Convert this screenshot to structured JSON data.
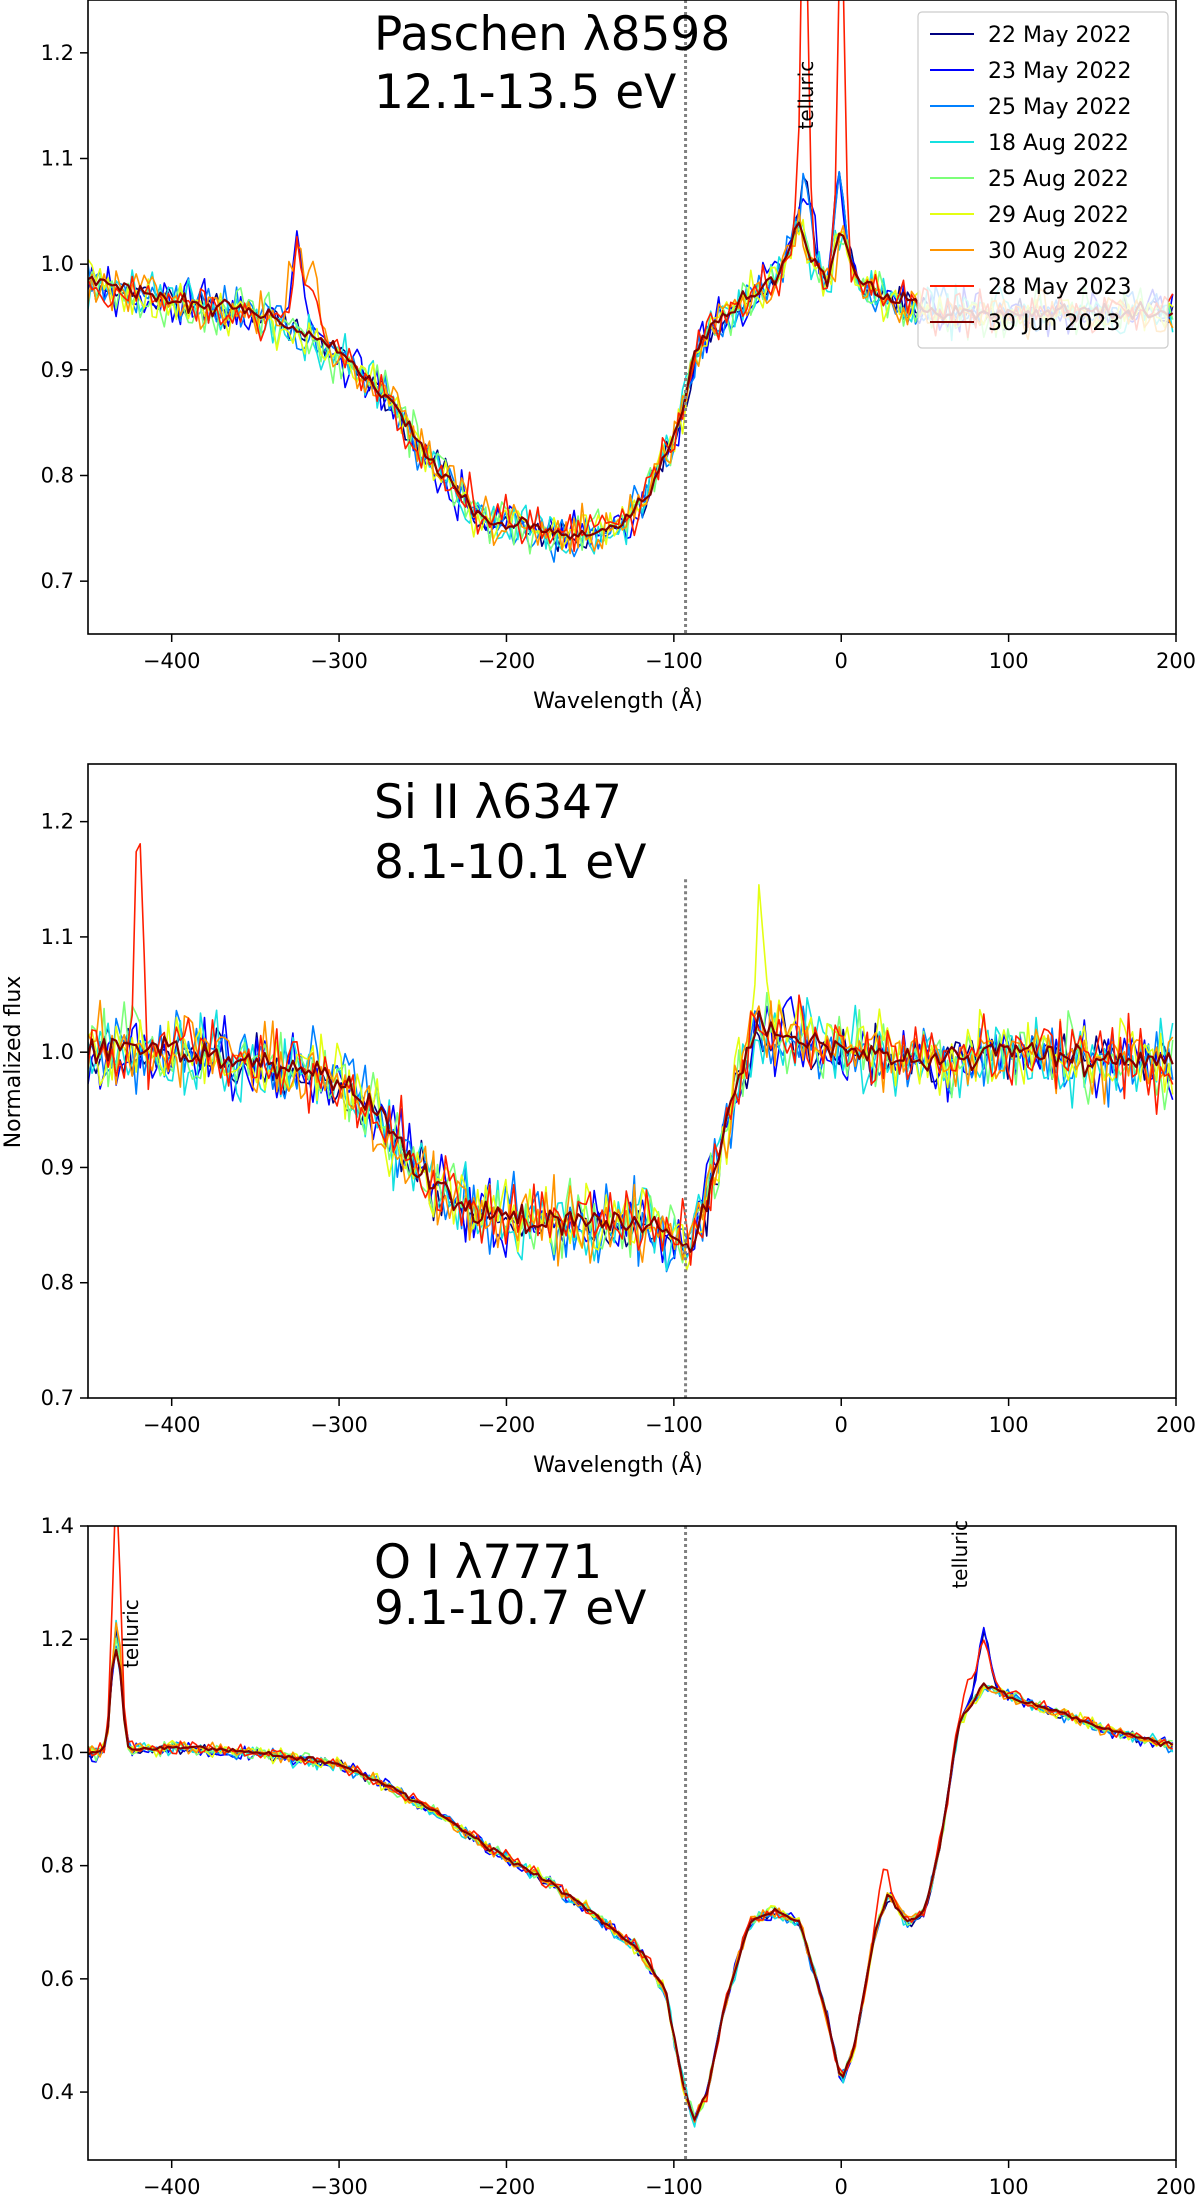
{
  "figure": {
    "ylabel": "Normalized flux",
    "legend": {
      "placement": "top-right of first panel",
      "entries": [
        {
          "label": "22 May 2022",
          "color": "#000080"
        },
        {
          "label": "23 May 2022",
          "color": "#0000ff"
        },
        {
          "label": "25 May 2022",
          "color": "#0080ff"
        },
        {
          "label": "18 Aug 2022",
          "color": "#15e0e0"
        },
        {
          "label": "25 Aug 2022",
          "color": "#7cff79"
        },
        {
          "label": "29 Aug 2022",
          "color": "#e4ff13"
        },
        {
          "label": "30 Aug 2022",
          "color": "#ff9400"
        },
        {
          "label": "28 May 2023",
          "color": "#ff1e00"
        },
        {
          "label": "30 Jun 2023",
          "color": "#800000"
        }
      ]
    },
    "vline_color": "#808080"
  },
  "chart_data": [
    {
      "type": "line",
      "title": "Paschen λ8598",
      "subtitle": "12.1-13.5 eV",
      "xlabel": "Wavelength (Å)",
      "xlim": [
        -450,
        200
      ],
      "ylim": [
        0.65,
        1.25
      ],
      "xticks": [
        -400,
        -300,
        -200,
        -100,
        0,
        100,
        200
      ],
      "xtick_labels": [
        "−400",
        "−300",
        "−200",
        "−100",
        "0",
        "100",
        "200"
      ],
      "yticks": [
        0.7,
        0.8,
        0.9,
        1.0,
        1.1,
        1.2
      ],
      "ytick_labels": [
        "0.7",
        "0.8",
        "0.9",
        "1.0",
        "1.1",
        "1.2"
      ],
      "vline_x": -93,
      "annotations": [
        {
          "text": "telluric",
          "x": -17,
          "y": 1.16,
          "rotation": -90
        }
      ],
      "profile": [
        [
          -450,
          0.98
        ],
        [
          -400,
          0.96
        ],
        [
          -350,
          0.95
        ],
        [
          -320,
          0.93
        ],
        [
          -300,
          0.91
        ],
        [
          -270,
          0.87
        ],
        [
          -250,
          0.82
        ],
        [
          -230,
          0.78
        ],
        [
          -210,
          0.75
        ],
        [
          -190,
          0.75
        ],
        [
          -170,
          0.74
        ],
        [
          -150,
          0.74
        ],
        [
          -130,
          0.75
        ],
        [
          -115,
          0.78
        ],
        [
          -100,
          0.83
        ],
        [
          -93,
          0.87
        ],
        [
          -85,
          0.92
        ],
        [
          -70,
          0.95
        ],
        [
          -50,
          0.97
        ],
        [
          -35,
          0.99
        ],
        [
          -25,
          1.04
        ],
        [
          -18,
          1.0
        ],
        [
          -8,
          0.98
        ],
        [
          0,
          1.03
        ],
        [
          10,
          0.98
        ],
        [
          30,
          0.96
        ],
        [
          60,
          0.95
        ],
        [
          100,
          0.95
        ],
        [
          150,
          0.95
        ],
        [
          200,
          0.95
        ]
      ],
      "noise": 0.022,
      "spikes": [
        {
          "x": -325,
          "h": 0.09,
          "w": 5,
          "series": [
            7,
            1,
            6
          ]
        },
        {
          "x": -315,
          "h": 0.06,
          "w": 4,
          "series": [
            6,
            7
          ]
        },
        {
          "x": -22,
          "h": 0.35,
          "w": 3,
          "series": [
            7
          ]
        },
        {
          "x": 0,
          "h": 0.3,
          "w": 3,
          "series": [
            7
          ]
        },
        {
          "x": -20,
          "h": 0.07,
          "w": 4,
          "series": [
            0,
            1,
            2
          ]
        },
        {
          "x": -2,
          "h": 0.06,
          "w": 4,
          "series": [
            0,
            1,
            2
          ]
        }
      ]
    },
    {
      "type": "line",
      "title": "Si II λ6347",
      "subtitle": "8.1-10.1 eV",
      "xlabel": "Wavelength (Å)",
      "xlim": [
        -450,
        200
      ],
      "ylim": [
        0.7,
        1.25
      ],
      "xticks": [
        -400,
        -300,
        -200,
        -100,
        0,
        100,
        200
      ],
      "xtick_labels": [
        "−400",
        "−300",
        "−200",
        "−100",
        "0",
        "100",
        "200"
      ],
      "yticks": [
        0.7,
        0.8,
        0.9,
        1.0,
        1.1,
        1.2
      ],
      "ytick_labels": [
        "0.7",
        "0.8",
        "0.9",
        "1.0",
        "1.1",
        "1.2"
      ],
      "vline_x": -93,
      "vline_ymax": 1.15,
      "annotations": [],
      "profile": [
        [
          -450,
          1.01
        ],
        [
          -400,
          1.01
        ],
        [
          -350,
          1.0
        ],
        [
          -310,
          0.99
        ],
        [
          -280,
          0.96
        ],
        [
          -250,
          0.9
        ],
        [
          -220,
          0.87
        ],
        [
          -180,
          0.86
        ],
        [
          -150,
          0.86
        ],
        [
          -120,
          0.86
        ],
        [
          -100,
          0.85
        ],
        [
          -90,
          0.84
        ],
        [
          -80,
          0.88
        ],
        [
          -65,
          0.97
        ],
        [
          -50,
          1.03
        ],
        [
          -30,
          1.02
        ],
        [
          0,
          1.01
        ],
        [
          50,
          1.0
        ],
        [
          100,
          1.01
        ],
        [
          150,
          1.0
        ],
        [
          200,
          1.0
        ]
      ],
      "noise": 0.032,
      "spikes": [
        {
          "x": -420,
          "h": 0.2,
          "w": 3,
          "series": [
            7
          ]
        },
        {
          "x": -48,
          "h": 0.12,
          "w": 4,
          "series": [
            5
          ]
        }
      ]
    },
    {
      "type": "line",
      "title": "O I λ7771",
      "subtitle": "9.1-10.7 eV",
      "xlabel": "",
      "xlim": [
        -450,
        200
      ],
      "ylim": [
        0.28,
        1.4
      ],
      "xticks": [
        -400,
        -300,
        -200,
        -100,
        0,
        100,
        200
      ],
      "xtick_labels": [
        "−400",
        "−300",
        "−200",
        "−100",
        "0",
        "100",
        "200"
      ],
      "yticks": [
        0.4,
        0.6,
        0.8,
        1.0,
        1.2,
        1.4
      ],
      "ytick_labels": [
        "0.4",
        "0.6",
        "0.8",
        "1.0",
        "1.2",
        "1.4"
      ],
      "vline_x": -93,
      "annotations": [
        {
          "text": "telluric",
          "x": -420,
          "y": 1.21,
          "rotation": -90
        },
        {
          "text": "telluric",
          "x": 75,
          "y": 1.35,
          "rotation": -90
        }
      ],
      "profile": [
        [
          -450,
          1.0
        ],
        [
          -400,
          1.01
        ],
        [
          -350,
          1.0
        ],
        [
          -300,
          0.98
        ],
        [
          -270,
          0.94
        ],
        [
          -240,
          0.89
        ],
        [
          -210,
          0.83
        ],
        [
          -180,
          0.78
        ],
        [
          -150,
          0.72
        ],
        [
          -120,
          0.65
        ],
        [
          -105,
          0.58
        ],
        [
          -95,
          0.42
        ],
        [
          -88,
          0.35
        ],
        [
          -80,
          0.4
        ],
        [
          -70,
          0.55
        ],
        [
          -55,
          0.7
        ],
        [
          -40,
          0.72
        ],
        [
          -25,
          0.7
        ],
        [
          -10,
          0.55
        ],
        [
          0,
          0.42
        ],
        [
          8,
          0.48
        ],
        [
          20,
          0.68
        ],
        [
          28,
          0.75
        ],
        [
          40,
          0.7
        ],
        [
          50,
          0.72
        ],
        [
          60,
          0.85
        ],
        [
          70,
          1.05
        ],
        [
          85,
          1.12
        ],
        [
          100,
          1.1
        ],
        [
          130,
          1.07
        ],
        [
          160,
          1.04
        ],
        [
          200,
          1.01
        ]
      ],
      "noise": 0.012,
      "spikes": [
        {
          "x": -433,
          "h": 0.22,
          "w": 4,
          "series": [
            0,
            1,
            2,
            3,
            4,
            5,
            6,
            7,
            8
          ]
        },
        {
          "x": -433,
          "h": 0.25,
          "w": 3,
          "series": [
            7
          ]
        },
        {
          "x": 85,
          "h": 0.1,
          "w": 5,
          "series": [
            7,
            1,
            0
          ]
        },
        {
          "x": 75,
          "h": 0.05,
          "w": 4,
          "series": [
            7
          ]
        },
        {
          "x": 25,
          "h": 0.08,
          "w": 4,
          "series": [
            7
          ]
        }
      ]
    }
  ]
}
